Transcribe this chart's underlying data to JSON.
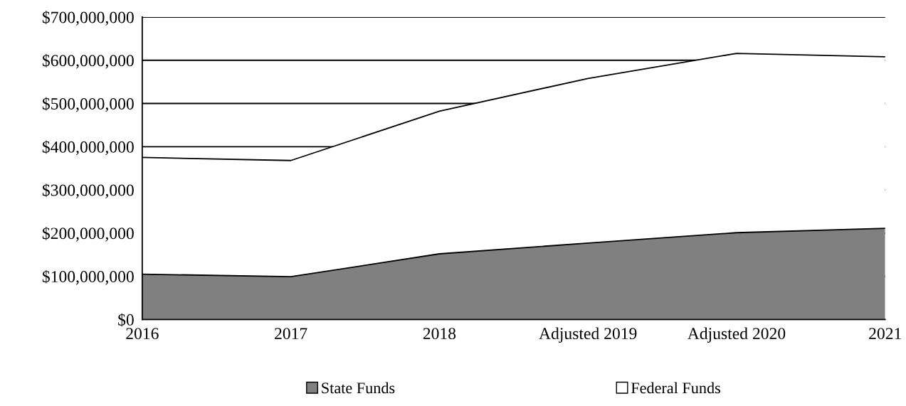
{
  "chart_data": {
    "type": "area",
    "stacked": true,
    "categories": [
      "2016",
      "2017",
      "2018",
      "Adjusted 2019",
      "Adjusted 2020",
      "2021"
    ],
    "series": [
      {
        "name": "State Funds",
        "color": "#808080",
        "values": [
          105000000,
          99000000,
          152000000,
          177000000,
          201000000,
          211000000
        ]
      },
      {
        "name": "Federal Funds",
        "color": "#ffffff",
        "values": [
          270000000,
          269000000,
          330000000,
          381000000,
          415000000,
          397000000
        ]
      }
    ],
    "ylim": [
      0,
      700000000
    ],
    "yticks": [
      {
        "value": 0,
        "label": "$0"
      },
      {
        "value": 100000000,
        "label": "$100,000,000"
      },
      {
        "value": 200000000,
        "label": "$200,000,000"
      },
      {
        "value": 300000000,
        "label": "$300,000,000"
      },
      {
        "value": 400000000,
        "label": "$400,000,000"
      },
      {
        "value": 500000000,
        "label": "$500,000,000"
      },
      {
        "value": 600000000,
        "label": "$600,000,000"
      },
      {
        "value": 700000000,
        "label": "$700,000,000"
      }
    ],
    "grid": "y",
    "legend": "bottom"
  }
}
